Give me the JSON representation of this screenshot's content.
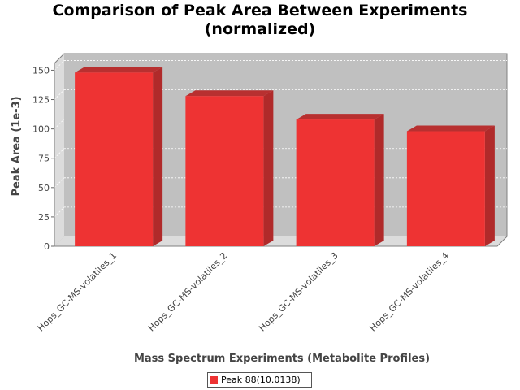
{
  "chart_data": {
    "type": "bar",
    "title_line1": "Comparison of Peak Area Between Experiments",
    "title_line2": "(normalized)",
    "xlabel": "Mass Spectrum Experiments (Metabolite Profiles)",
    "ylabel": "Peak Area (1e-3)",
    "categories": [
      "Hops_GC-MS-volatiles_1",
      "Hops_GC-MS-volatiles_2",
      "Hops_GC-MS-volatiles_3",
      "Hops_GC-MS-volatiles_4"
    ],
    "series": [
      {
        "name": "Peak 88(10.0138)",
        "values": [
          148,
          128,
          108,
          98
        ]
      }
    ],
    "ylim": [
      0,
      160
    ],
    "yticks": [
      "0",
      "25",
      "50",
      "75",
      "100",
      "125",
      "150"
    ],
    "grid": true,
    "legend_position": "bottom",
    "colors": {
      "bar_front": "#ee3333",
      "bar_top": "#b83030",
      "bar_side": "#b02a2a",
      "plot_bg": "#c0c0c0",
      "wall_side": "#dcdcdc"
    }
  }
}
